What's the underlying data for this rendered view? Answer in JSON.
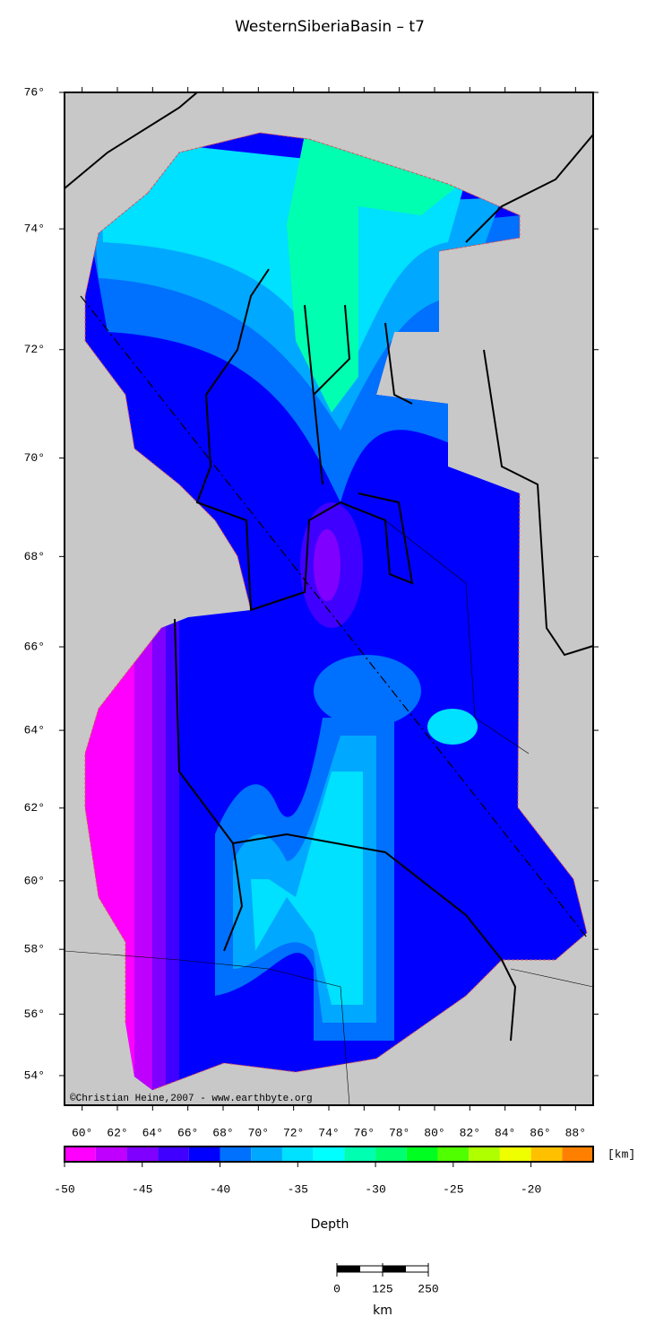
{
  "title": "WesternSiberiaBasin – t7",
  "map": {
    "xlim": [
      59,
      89
    ],
    "ylim": [
      53,
      76
    ],
    "xticks": [
      {
        "value": 60,
        "label": "60°"
      },
      {
        "value": 62,
        "label": "62°"
      },
      {
        "value": 64,
        "label": "64°"
      },
      {
        "value": 66,
        "label": "66°"
      },
      {
        "value": 68,
        "label": "68°"
      },
      {
        "value": 70,
        "label": "70°"
      },
      {
        "value": 72,
        "label": "72°"
      },
      {
        "value": 74,
        "label": "74°"
      },
      {
        "value": 76,
        "label": "76°"
      },
      {
        "value": 78,
        "label": "78°"
      },
      {
        "value": 80,
        "label": "80°"
      },
      {
        "value": 82,
        "label": "82°"
      },
      {
        "value": 84,
        "label": "84°"
      },
      {
        "value": 86,
        "label": "86°"
      },
      {
        "value": 88,
        "label": "88°"
      }
    ],
    "yticks": [
      {
        "value": 76,
        "label": "76°"
      },
      {
        "value": 74,
        "label": "74°"
      },
      {
        "value": 72,
        "label": "72°"
      },
      {
        "value": 70,
        "label": "70°"
      },
      {
        "value": 68,
        "label": "68°"
      },
      {
        "value": 66,
        "label": "66°"
      },
      {
        "value": 64,
        "label": "64°"
      },
      {
        "value": 62,
        "label": "62°"
      },
      {
        "value": 60,
        "label": "60°"
      },
      {
        "value": 58,
        "label": "58°"
      },
      {
        "value": 56,
        "label": "56°"
      },
      {
        "value": 54,
        "label": "54°"
      }
    ],
    "credit": "©Christian Heine,2007 - www.earthbyte.org"
  },
  "colorbar": {
    "range": [
      -50,
      -16
    ],
    "levels": [
      {
        "value": -50,
        "color": "#ff00ff"
      },
      {
        "value": -48,
        "color": "#c000ff"
      },
      {
        "value": -46,
        "color": "#8000ff"
      },
      {
        "value": -44,
        "color": "#4000ff"
      },
      {
        "value": -42,
        "color": "#0000ff"
      },
      {
        "value": -40,
        "color": "#0070ff"
      },
      {
        "value": -38,
        "color": "#00a8ff"
      },
      {
        "value": -36,
        "color": "#00e0ff"
      },
      {
        "value": -34,
        "color": "#00ffff"
      },
      {
        "value": -32,
        "color": "#00ffb0"
      },
      {
        "value": -30,
        "color": "#00ff70"
      },
      {
        "value": -28,
        "color": "#00ff20"
      },
      {
        "value": -26,
        "color": "#50ff00"
      },
      {
        "value": -24,
        "color": "#b0ff00"
      },
      {
        "value": -22,
        "color": "#f0ff00"
      },
      {
        "value": -20,
        "color": "#ffc000"
      },
      {
        "value": -18,
        "color": "#ff8000"
      }
    ],
    "ticks": [
      -50,
      -45,
      -40,
      -35,
      -30,
      -25,
      -20
    ],
    "unit": "[km]",
    "label": "Depth"
  },
  "scale": {
    "ticks": [
      0,
      125,
      250
    ],
    "unit": "km"
  }
}
